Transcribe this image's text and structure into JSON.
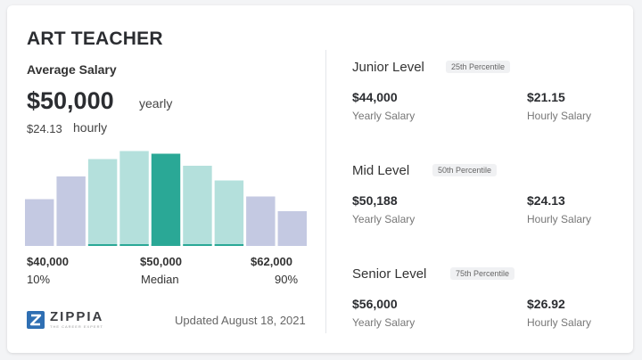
{
  "title": "ART TEACHER",
  "average": {
    "label": "Average Salary",
    "value": "$50,000",
    "period": "yearly",
    "hourly_value": "$24.13",
    "hourly_label": "hourly"
  },
  "chart_data": {
    "type": "bar",
    "title": "",
    "values": [
      3.5,
      5.2,
      6.5,
      7.1,
      6.9,
      6.0,
      4.9,
      3.7,
      2.6
    ],
    "highlight_index": 4,
    "highlight_range": [
      2,
      6
    ],
    "ylim": [
      0,
      7.2
    ],
    "grid": false,
    "axis": {
      "left": {
        "value": "$40,000",
        "label": "10%"
      },
      "center": {
        "value": "$50,000",
        "label": "Median"
      },
      "right": {
        "value": "$62,000",
        "label": "90%"
      }
    },
    "colors": {
      "outer": "#c4c9e2",
      "inner": "#b4e0dc",
      "median": "#2aa896",
      "underline": "#2aa896"
    }
  },
  "footer": {
    "brand": "ZIPPIA",
    "tagline": "THE CAREER EXPERT",
    "updated": "Updated August 18, 2021"
  },
  "levels": [
    {
      "name": "Junior Level",
      "percentile": "25th Percentile",
      "yearly": "$44,000",
      "yearly_label": "Yearly Salary",
      "hourly": "$21.15",
      "hourly_label": "Hourly Salary"
    },
    {
      "name": "Mid Level",
      "percentile": "50th Percentile",
      "yearly": "$50,188",
      "yearly_label": "Yearly Salary",
      "hourly": "$24.13",
      "hourly_label": "Hourly Salary"
    },
    {
      "name": "Senior Level",
      "percentile": "75th Percentile",
      "yearly": "$56,000",
      "yearly_label": "Yearly Salary",
      "hourly": "$26.92",
      "hourly_label": "Hourly Salary"
    }
  ]
}
